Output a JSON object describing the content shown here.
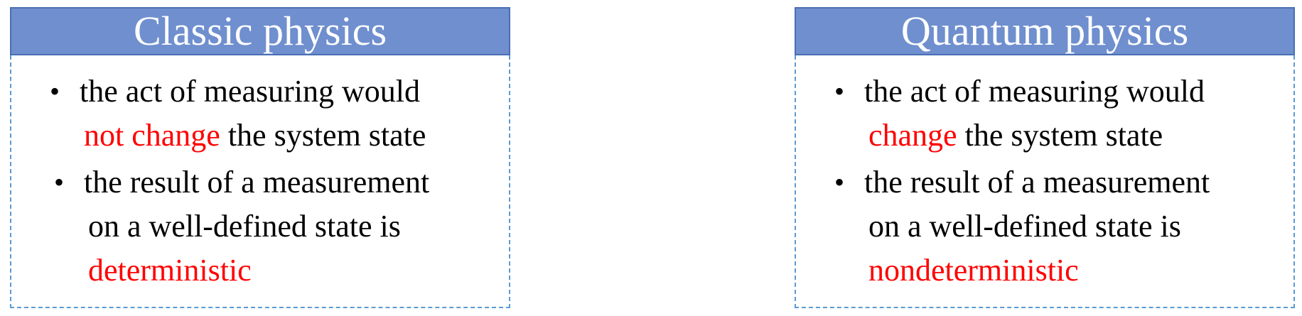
{
  "accent_color": "#ff0000",
  "header_color": "#6f8fce",
  "border_color": "#5b9bd5",
  "classic": {
    "title": "Classic physics",
    "bullet1": {
      "line1": "the act of measuring would",
      "highlight": "not change",
      "line2_rest": " the system state"
    },
    "bullet2": {
      "line1": "the result of a measurement",
      "line2": "on a well-defined state is",
      "highlight": "deterministic"
    }
  },
  "quantum": {
    "title": "Quantum physics",
    "bullet1": {
      "line1": "the act of measuring would",
      "highlight": "change",
      "line2_rest": " the system state"
    },
    "bullet2": {
      "line1": "the result of a measurement",
      "line2": "on a well-defined state is",
      "highlight": "nondeterministic"
    }
  }
}
